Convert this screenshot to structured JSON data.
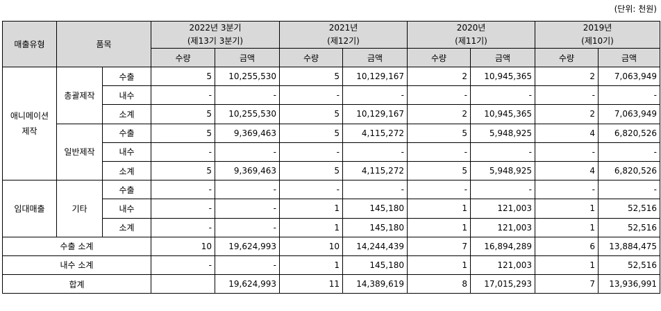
{
  "unit_label": "(단위: 천원)",
  "headers": {
    "sales_type": "매출유형",
    "item": "품목",
    "qty": "수량",
    "amount": "금액",
    "periods": [
      {
        "line1": "2022년 3분기",
        "line2": "(제13기 3분기)"
      },
      {
        "line1": "2021년",
        "line2": "(제12기)"
      },
      {
        "line1": "2020년",
        "line2": "(제11기)"
      },
      {
        "line1": "2019년",
        "line2": "(제10기)"
      }
    ]
  },
  "groups": {
    "animation": "애니메이션\n제작",
    "rental": "임대매출"
  },
  "items": {
    "general_production": "총괄제작",
    "normal_production": "일반제작",
    "other": "기타"
  },
  "rows": [
    {
      "sub": "수출",
      "values": [
        "5",
        "10,255,530",
        "5",
        "10,129,167",
        "2",
        "10,945,365",
        "2",
        "7,063,949"
      ]
    },
    {
      "sub": "내수",
      "values": [
        "-",
        "-",
        "-",
        "-",
        "-",
        "-",
        "-",
        "-"
      ]
    },
    {
      "sub": "소계",
      "values": [
        "5",
        "10,255,530",
        "5",
        "10,129,167",
        "2",
        "10,945,365",
        "2",
        "7,063,949"
      ]
    },
    {
      "sub": "수출",
      "values": [
        "5",
        "9,369,463",
        "5",
        "4,115,272",
        "5",
        "5,948,925",
        "4",
        "6,820,526"
      ]
    },
    {
      "sub": "내수",
      "values": [
        "-",
        "-",
        "-",
        "-",
        "-",
        "-",
        "-",
        "-"
      ]
    },
    {
      "sub": "소계",
      "values": [
        "5",
        "9,369,463",
        "5",
        "4,115,272",
        "5",
        "5,948,925",
        "4",
        "6,820,526"
      ]
    },
    {
      "sub": "수출",
      "values": [
        "-",
        "-",
        "-",
        "-",
        "-",
        "-",
        "-",
        "-"
      ]
    },
    {
      "sub": "내수",
      "values": [
        "-",
        "-",
        "1",
        "145,180",
        "1",
        "121,003",
        "1",
        "52,516"
      ]
    },
    {
      "sub": "소계",
      "values": [
        "-",
        "-",
        "1",
        "145,180",
        "1",
        "121,003",
        "1",
        "52,516"
      ]
    }
  ],
  "totals": [
    {
      "label": "수출 소계",
      "values": [
        "10",
        "19,624,993",
        "10",
        "14,244,439",
        "7",
        "16,894,289",
        "6",
        "13,884,475"
      ]
    },
    {
      "label": "내수 소계",
      "values": [
        "-",
        "-",
        "1",
        "145,180",
        "1",
        "121,003",
        "1",
        "52,516"
      ]
    },
    {
      "label": "합계",
      "values": [
        "",
        "19,624,993",
        "11",
        "14,389,619",
        "8",
        "17,015,293",
        "7",
        "13,936,991"
      ]
    }
  ]
}
